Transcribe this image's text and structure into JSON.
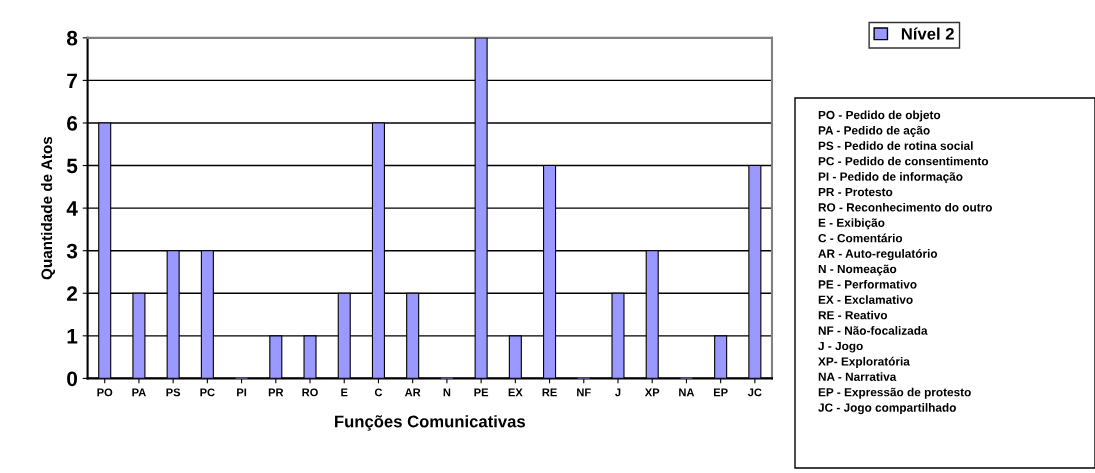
{
  "chart_data": {
    "type": "bar",
    "xlabel": "Funções Comunicativas",
    "ylabel": "Quantidade de Atos",
    "categories": [
      "PO",
      "PA",
      "PS",
      "PC",
      "PI",
      "PR",
      "RO",
      "E",
      "C",
      "AR",
      "N",
      "PE",
      "EX",
      "RE",
      "NF",
      "J",
      "XP",
      "NA",
      "EP",
      "JC"
    ],
    "series": [
      {
        "name": "Nível 2",
        "color": "#9999ff",
        "values": [
          6,
          2,
          3,
          3,
          0,
          1,
          1,
          2,
          6,
          2,
          0,
          8,
          1,
          5,
          0,
          2,
          3,
          0,
          1,
          5
        ]
      }
    ],
    "ylim": [
      0,
      8
    ],
    "yticks": [
      0,
      1,
      2,
      3,
      4,
      5,
      6,
      7,
      8
    ],
    "grid": "y",
    "legend": "top right",
    "annotations": [
      "PO - Pedido de objeto",
      "PA - Pedido de ação",
      "PS - Pedido de rotina social",
      "PC - Pedido de consentimento",
      "PI - Pedido de informação",
      "PR - Protesto",
      "RO - Reconhecimento do outro",
      "E - Exibição",
      "C - Comentário",
      "AR - Auto-regulatório",
      "N - Nomeação",
      "PE - Performativo",
      "EX - Exclamativo",
      "RE - Reativo",
      "NF - Não-focalizada",
      "J - Jogo",
      "XP- Exploratória",
      "NA - Narrativa",
      "EP - Expressão de protesto",
      "JC - Jogo compartilhado"
    ]
  }
}
